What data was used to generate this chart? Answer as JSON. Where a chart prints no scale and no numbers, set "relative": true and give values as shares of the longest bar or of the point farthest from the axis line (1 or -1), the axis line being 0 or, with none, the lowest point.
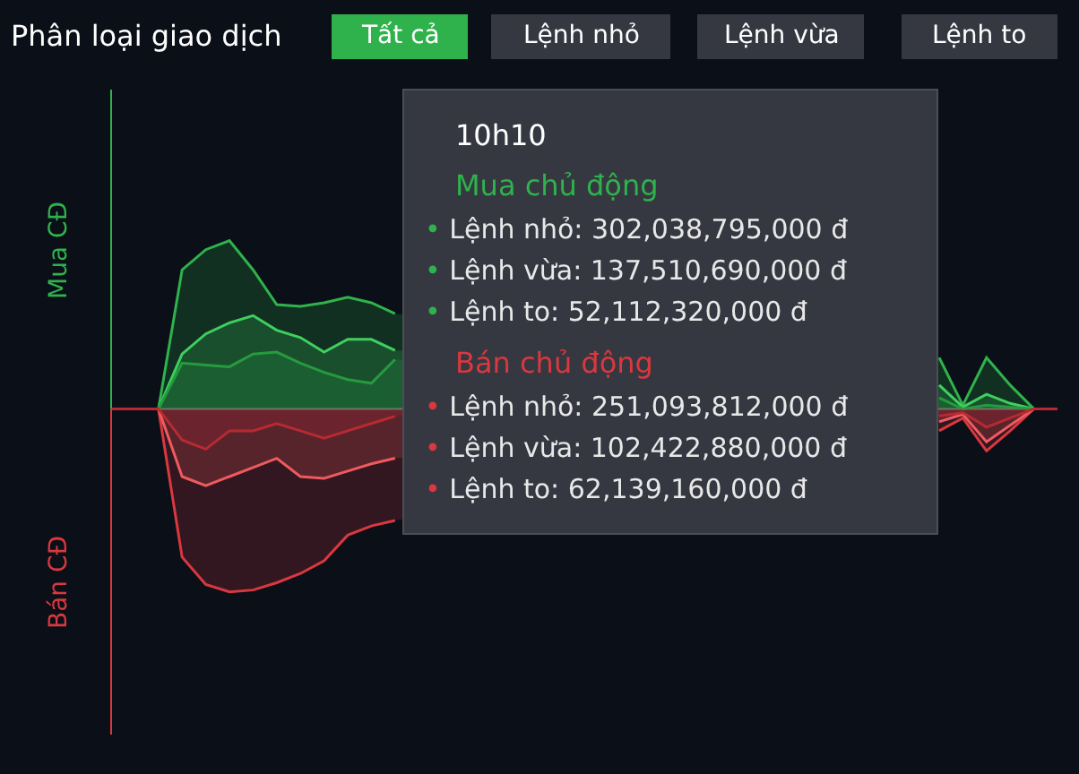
{
  "chart_data": {
    "type": "area",
    "relative": true,
    "title": "Phân loại giao dịch",
    "categories": [
      null,
      null,
      null,
      null,
      null,
      null,
      null,
      null,
      null,
      null,
      null,
      null,
      null,
      null,
      null,
      null,
      null,
      null,
      null,
      null,
      null,
      null,
      null,
      null,
      null,
      null,
      null,
      null,
      null,
      null,
      null,
      null,
      null,
      null,
      null,
      null,
      null,
      null,
      null,
      null,
      null
    ],
    "series": [
      {
        "color": "#2fb24c",
        "values": [
          0,
          0,
          0,
          0.76,
          0.87,
          0.92,
          0.76,
          0.57,
          0.56,
          0.58,
          0.61,
          0.58,
          0.52,
          null,
          null,
          null,
          null,
          null,
          null,
          null,
          null,
          null,
          null,
          null,
          null,
          null,
          null,
          null,
          null,
          null,
          null,
          null,
          null,
          null,
          null,
          0.28,
          0.02,
          0.28,
          0.13,
          0,
          0
        ]
      },
      {
        "color": "#3fcf5e",
        "values": [
          0,
          0,
          0,
          0.3,
          0.41,
          0.47,
          0.51,
          0.43,
          0.39,
          0.31,
          0.38,
          0.38,
          0.32,
          null,
          null,
          null,
          null,
          null,
          null,
          null,
          null,
          null,
          null,
          null,
          null,
          null,
          null,
          null,
          null,
          null,
          null,
          null,
          null,
          null,
          null,
          0.13,
          0.01,
          0.08,
          0.03,
          0,
          0
        ]
      },
      {
        "color": "#259a3f",
        "values": [
          0,
          0,
          0,
          0.25,
          0.24,
          0.23,
          0.3,
          0.31,
          0.25,
          0.2,
          0.16,
          0.14,
          0.27,
          null,
          null,
          null,
          null,
          null,
          null,
          null,
          null,
          null,
          null,
          null,
          null,
          null,
          null,
          null,
          null,
          null,
          null,
          null,
          null,
          null,
          null,
          0.06,
          0,
          0.02,
          0.01,
          0,
          0
        ]
      },
      {
        "color": "#d9383f",
        "values": [
          0,
          0,
          0,
          -0.81,
          -0.96,
          -1.0,
          -0.99,
          -0.95,
          -0.9,
          -0.83,
          -0.69,
          -0.64,
          -0.61,
          null,
          null,
          null,
          null,
          null,
          null,
          null,
          null,
          null,
          null,
          null,
          null,
          null,
          null,
          null,
          null,
          null,
          null,
          null,
          null,
          null,
          null,
          -0.12,
          -0.05,
          -0.23,
          -0.12,
          0,
          0
        ]
      },
      {
        "color": "#ee5a60",
        "values": [
          0,
          0,
          0,
          -0.37,
          -0.42,
          -0.37,
          -0.32,
          -0.27,
          -0.37,
          -0.38,
          -0.34,
          -0.3,
          -0.27,
          null,
          null,
          null,
          null,
          null,
          null,
          null,
          null,
          null,
          null,
          null,
          null,
          null,
          null,
          null,
          null,
          null,
          null,
          null,
          null,
          null,
          null,
          -0.07,
          -0.03,
          -0.18,
          -0.09,
          0,
          0
        ]
      },
      {
        "color": "#b82a31",
        "values": [
          0,
          0,
          0,
          -0.17,
          -0.22,
          -0.12,
          -0.12,
          -0.08,
          -0.12,
          -0.16,
          -0.12,
          -0.08,
          -0.04,
          null,
          null,
          null,
          null,
          null,
          null,
          null,
          null,
          null,
          null,
          null,
          null,
          null,
          null,
          null,
          null,
          null,
          null,
          null,
          null,
          null,
          null,
          -0.04,
          -0.02,
          -0.1,
          -0.05,
          0,
          0
        ]
      }
    ],
    "annotations": [
      "Tất cả",
      "Lệnh nhỏ",
      "Lệnh vừa",
      "Lệnh to",
      "Mua CĐ",
      "Bán CĐ",
      "10h10",
      "Mua chủ động",
      "• Lệnh nhỏ: 302,038,795,000 đ",
      "• Lệnh vừa: 137,510,690,000 đ",
      "• Lệnh to: 52,112,320,000 đ",
      "Bán chủ động",
      "• Lệnh nhỏ: 251,093,812,000 đ",
      "• Lệnh vừa: 102,422,880,000 đ",
      "• Lệnh to: 62,139,160,000 đ"
    ]
  }
}
